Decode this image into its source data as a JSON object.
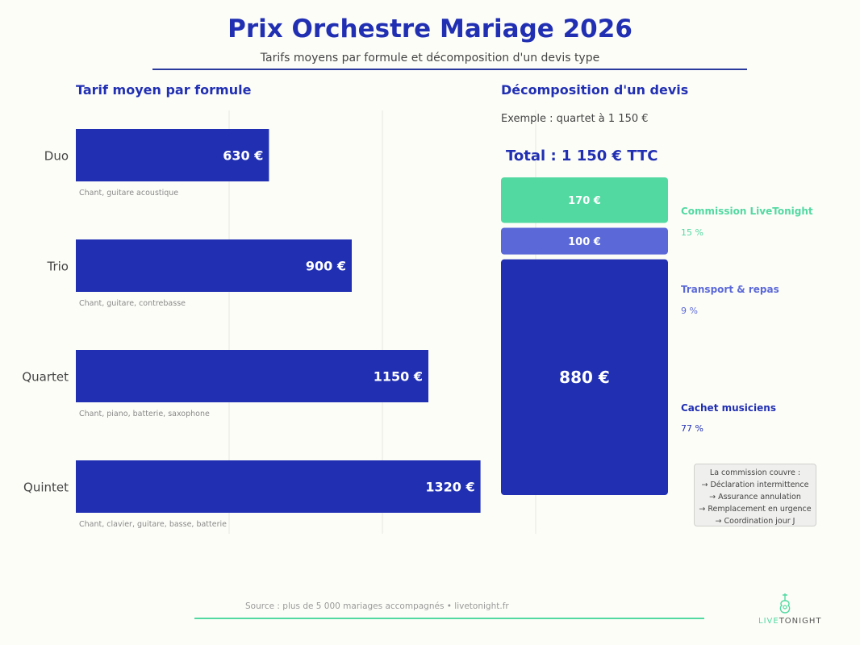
{
  "title": "Prix Orchestre Mariage 2026",
  "subtitle": "Tarifs moyens par formule et décomposition d'un devis type",
  "left_title": "Tarif moyen par formule",
  "right_title": "Décomposition d'un devis",
  "example_text": "Exemple : quartet à 1 150 €",
  "total_text": "Total : 1 150 € TTC",
  "chart_data": [
    {
      "type": "bar",
      "orientation": "horizontal",
      "title": "Tarif moyen par formule",
      "categories": [
        "Duo",
        "Trio",
        "Quartet",
        "Quintet"
      ],
      "values": [
        630,
        900,
        1150,
        1320
      ],
      "value_labels": [
        "630 €",
        "900 €",
        "1150 €",
        "1320 €"
      ],
      "descriptions": [
        "Chant, guitare acoustique",
        "Chant, guitare, contrebasse",
        "Chant, piano, batterie, saxophone",
        "Chant, clavier, guitare, basse, batterie"
      ],
      "xlim": [
        0,
        1500
      ],
      "grid": "vertical",
      "bar_color": "#2130b3"
    },
    {
      "type": "bar",
      "orientation": "stacked-vertical",
      "title": "Décomposition d'un devis",
      "total": 1150,
      "segments": [
        {
          "name": "Commission LiveTonight",
          "value": 170,
          "value_label": "170 €",
          "percent_label": "15 %",
          "color": "#52d9a1"
        },
        {
          "name": "Transport & repas",
          "value": 100,
          "value_label": "100 €",
          "percent_label": "9 %",
          "color": "#5b69d8"
        },
        {
          "name": "Cachet musiciens",
          "value": 880,
          "value_label": "880 €",
          "percent_label": "77 %",
          "color": "#2130b3"
        }
      ]
    }
  ],
  "note": {
    "heading": "La commission couvre :",
    "items": [
      "→  Déclaration intermittence",
      "→  Assurance annulation",
      "→  Remplacement en urgence",
      "→  Coordination jour J"
    ]
  },
  "source": "Source : plus de 5 000 mariages accompagnés  •  livetonight.fr",
  "logo": {
    "part1": "LIVE",
    "part2": "TONIGHT",
    "icon": "guitar-icon"
  }
}
